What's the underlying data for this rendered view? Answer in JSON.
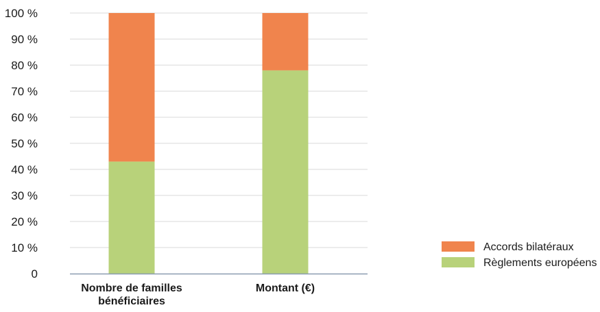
{
  "chart_data": {
    "type": "bar",
    "stacked": true,
    "categories": [
      [
        "Nombre de familles",
        "bénéficiaires"
      ],
      [
        "Montant (€)"
      ]
    ],
    "series": [
      {
        "name": "Règlements européens",
        "color": "#b8d27a",
        "values": [
          43,
          78
        ]
      },
      {
        "name": "Accords bilatéraux",
        "color": "#f0844d",
        "values": [
          57,
          22
        ]
      }
    ],
    "ylim": [
      0,
      100
    ],
    "yticks": [
      "0",
      "10 %",
      "20 %",
      "30 %",
      "40 %",
      "50 %",
      "60 %",
      "70 %",
      "80 %",
      "90 %",
      "100 %"
    ],
    "grid": true,
    "legend": {
      "position": "bottom-right",
      "entries": [
        "Accords bilatéraux",
        "Règlements européens"
      ]
    },
    "title": "",
    "xlabel": "",
    "ylabel": ""
  }
}
